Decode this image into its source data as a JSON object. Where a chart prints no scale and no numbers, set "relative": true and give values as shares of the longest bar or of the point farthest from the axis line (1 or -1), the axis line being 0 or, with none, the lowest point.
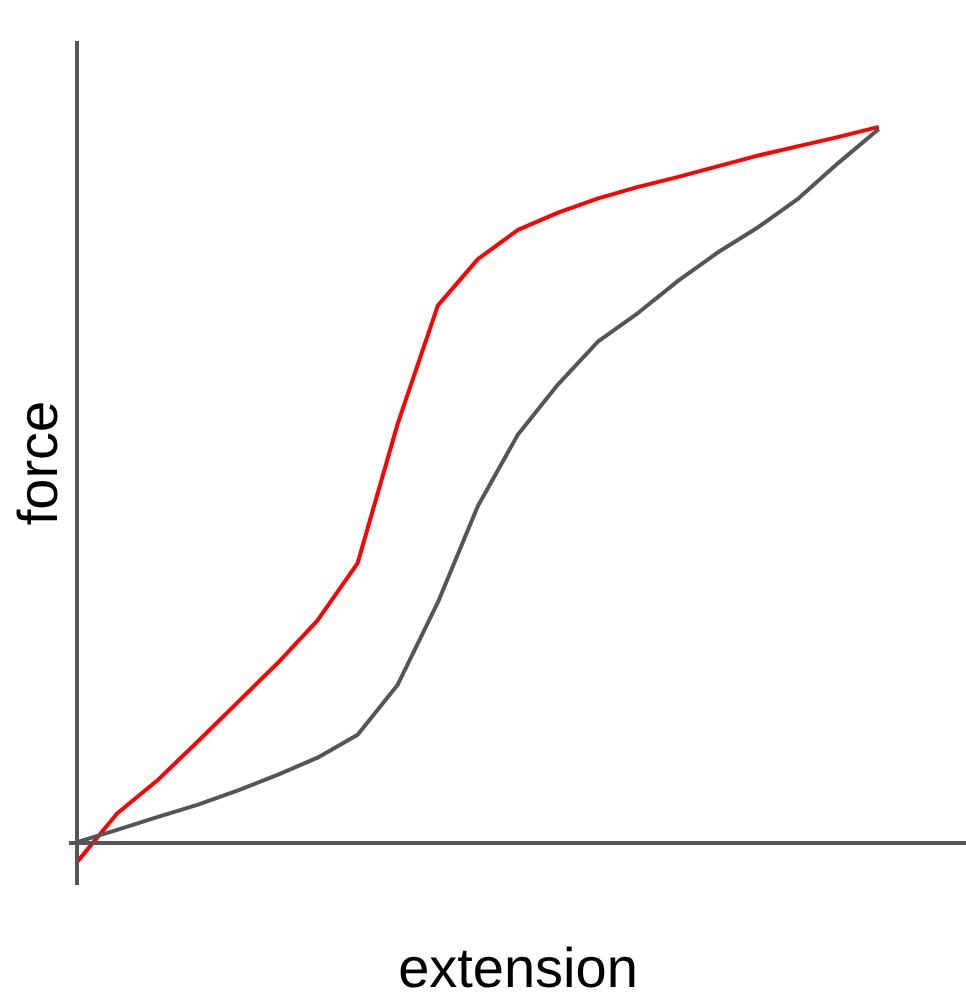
{
  "chart_data": {
    "type": "line",
    "relative": true,
    "xlabel": "extension",
    "ylabel": "force",
    "marker": "none",
    "line_style": "solid",
    "categories": [
      null,
      null,
      null,
      null,
      null,
      null,
      null,
      null,
      null,
      null,
      null,
      null,
      null,
      null,
      null,
      null,
      null,
      null,
      null,
      null,
      null
    ],
    "series": [
      {
        "color": "#ff0000",
        "values": [
          -0.028,
          0.04,
          0.086,
          0.14,
          0.195,
          0.25,
          0.31,
          0.39,
          0.585,
          0.75,
          0.815,
          0.856,
          0.88,
          0.9,
          0.916,
          0.93,
          0.945,
          0.96,
          0.973,
          0.986,
          1.0
        ]
      },
      {
        "color": "#555555",
        "values": [
          0,
          0.017,
          0.035,
          0.052,
          0.072,
          0.094,
          0.118,
          0.15,
          0.22,
          0.335,
          0.47,
          0.57,
          0.64,
          0.7,
          0.74,
          0.785,
          0.825,
          0.86,
          0.9,
          0.95,
          0.997
        ]
      }
    ]
  }
}
